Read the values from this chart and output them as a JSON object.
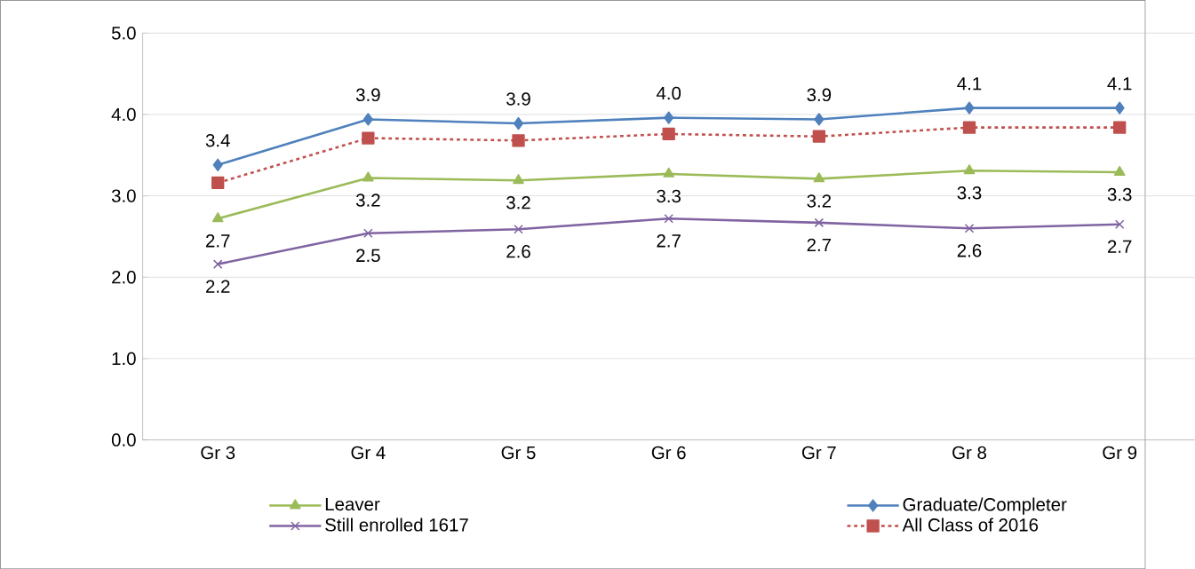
{
  "chart_data": {
    "type": "line",
    "categories": [
      "Gr 3",
      "Gr 4",
      "Gr 5",
      "Gr 6",
      "Gr 7",
      "Gr 8",
      "Gr 9"
    ],
    "series": [
      {
        "name": "Leaver",
        "color": "#9bbb59",
        "marker": "triangle",
        "line_style": "solid",
        "values": [
          2.72,
          3.22,
          3.19,
          3.27,
          3.21,
          3.31,
          3.29
        ],
        "value_labels": [
          "2.7",
          "3.2",
          "3.2",
          "3.3",
          "3.2",
          "3.3",
          "3.3"
        ]
      },
      {
        "name": "Graduate/Completer",
        "color": "#4f81bd",
        "marker": "diamond",
        "line_style": "solid",
        "values": [
          3.38,
          3.94,
          3.89,
          3.96,
          3.94,
          4.08,
          4.08
        ],
        "value_labels": [
          "3.4",
          "3.9",
          "3.9",
          "4.0",
          "3.9",
          "4.1",
          "4.1"
        ]
      },
      {
        "name": "Still enrolled 1617",
        "color": "#8064a2",
        "marker": "cross",
        "line_style": "solid",
        "values": [
          2.16,
          2.54,
          2.59,
          2.72,
          2.67,
          2.6,
          2.65
        ],
        "value_labels": [
          "2.2",
          "2.5",
          "2.6",
          "2.7",
          "2.7",
          "2.6",
          "2.7"
        ]
      },
      {
        "name": "All Class of 2016",
        "color": "#c0504d",
        "marker": "square",
        "line_style": "dashed",
        "values": [
          3.16,
          3.71,
          3.68,
          3.76,
          3.73,
          3.84,
          3.84
        ]
      }
    ],
    "ylim": [
      0,
      5
    ],
    "yticks": [
      {
        "value": 0,
        "label": "0.0"
      },
      {
        "value": 1,
        "label": "1.0"
      },
      {
        "value": 2,
        "label": "2.0"
      },
      {
        "value": 3,
        "label": "3.0"
      },
      {
        "value": 4,
        "label": "4.0"
      },
      {
        "value": 5,
        "label": "5.0"
      }
    ],
    "grid": "y",
    "legend": "bottom"
  }
}
